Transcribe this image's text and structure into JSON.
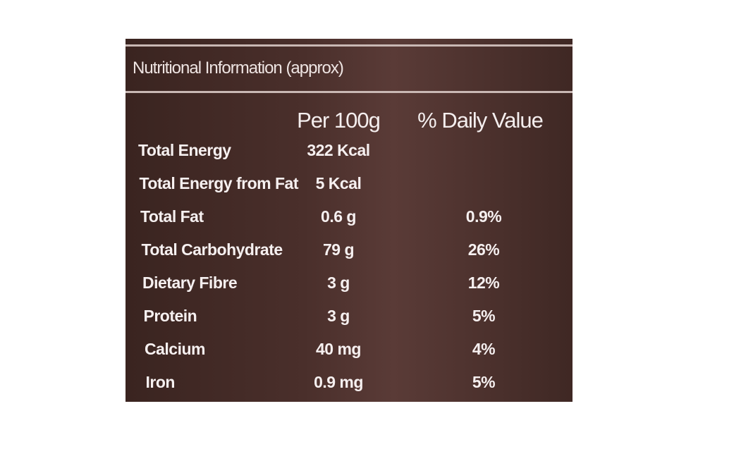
{
  "header": {
    "title": "Nutritional Information (approx)"
  },
  "table": {
    "columns": [
      "Per 100g",
      "% Daily Value"
    ],
    "rows": [
      [
        "Total Energy",
        "322 Kcal"
      ],
      [
        "Total Energy from Fat",
        "5 Kcal"
      ],
      [
        "Total Fat",
        "0.6 g",
        "0.9%"
      ],
      [
        "Total Carbohydrate",
        "79 g",
        "26%"
      ],
      [
        "Dietary Fibre",
        "3 g",
        "12%"
      ],
      [
        "Protein",
        "3 g",
        "5%"
      ],
      [
        "Calcium",
        "40 mg",
        "4%"
      ],
      [
        "Iron",
        "0.9 mg",
        "5%"
      ]
    ]
  }
}
